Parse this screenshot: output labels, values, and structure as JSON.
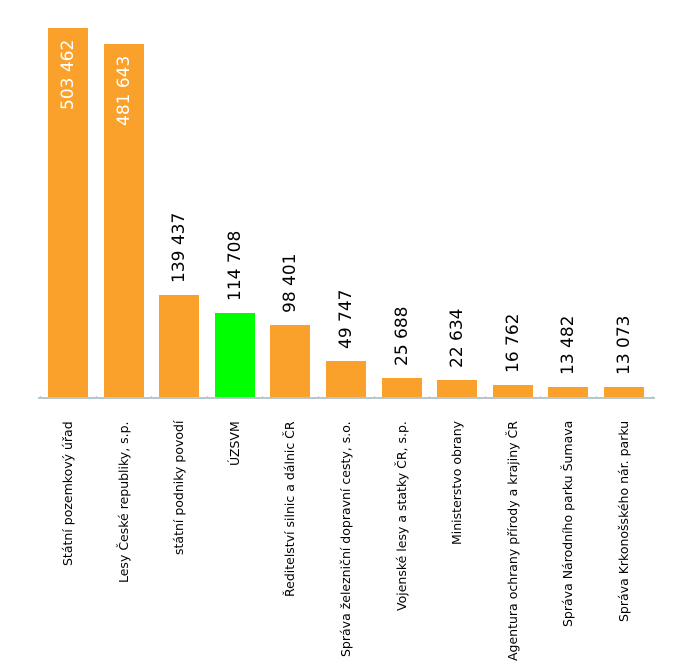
{
  "chart_data": {
    "type": "bar",
    "title": "",
    "xlabel": "",
    "ylabel": "",
    "ylim": [
      0,
      510000
    ],
    "grid": false,
    "legend": null,
    "categories": [
      "Státní pozemkový úřad",
      "Lesy České republiky, s.p.",
      "státní podniky povodí",
      "ÚZSVM",
      "Ředitelství silnic a dálnic ČR",
      "Správa železniční dopravní cesty, s.o.",
      "Vojenské lesy a statky ČR, s.p.",
      "Ministerstvo obrany",
      "Agentura ochrany přírody a krajiny ČR",
      "Správa Národního parku Šumava",
      "Správa Krkonošského nár. parku"
    ],
    "values": [
      503462,
      481643,
      139437,
      114708,
      98401,
      49747,
      25688,
      22634,
      16762,
      13482,
      13073
    ],
    "value_labels": [
      "503 462",
      "481 643",
      "139 437",
      "114 708",
      "98 401",
      "49 747",
      "25 688",
      "22 634",
      "16 762",
      "13 482",
      "13 073"
    ],
    "colors": [
      "#f9a12b",
      "#f9a12b",
      "#f9a12b",
      "#00ff00",
      "#f9a12b",
      "#f9a12b",
      "#f9a12b",
      "#f9a12b",
      "#f9a12b",
      "#f9a12b",
      "#f9a12b"
    ],
    "label_inside": [
      true,
      true,
      false,
      false,
      false,
      false,
      false,
      false,
      false,
      false,
      false
    ]
  },
  "style": {
    "bar_color": "#f9a12b",
    "highlight_color": "#00ff00",
    "axis_color": "#b7c7cc",
    "inside_label_color": "#ffffff",
    "outside_label_color": "#000000"
  }
}
